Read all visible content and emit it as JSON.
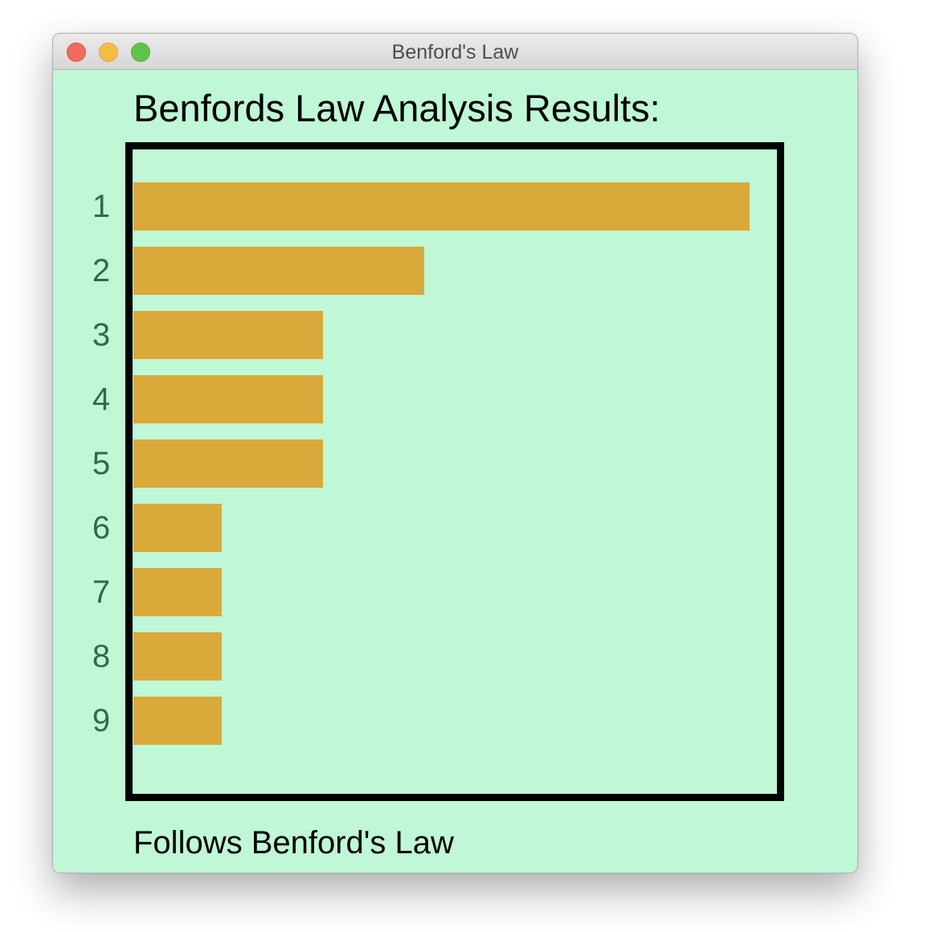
{
  "window": {
    "title": "Benford's Law"
  },
  "heading": "Benfords Law Analysis Results:",
  "status": "Follows Benford's Law",
  "colors": {
    "background": "#c0f7d6",
    "bar": "#d9a93a",
    "digit_label": "#2f6b49",
    "frame": "#000000"
  },
  "chart_data": {
    "type": "bar",
    "orientation": "horizontal",
    "categories": [
      "1",
      "2",
      "3",
      "4",
      "5",
      "6",
      "7",
      "8",
      "9"
    ],
    "values": [
      7,
      3.3,
      2.15,
      2.15,
      2.15,
      1,
      1,
      1,
      1
    ],
    "xlim": [
      0,
      7.3
    ],
    "grid": false
  }
}
